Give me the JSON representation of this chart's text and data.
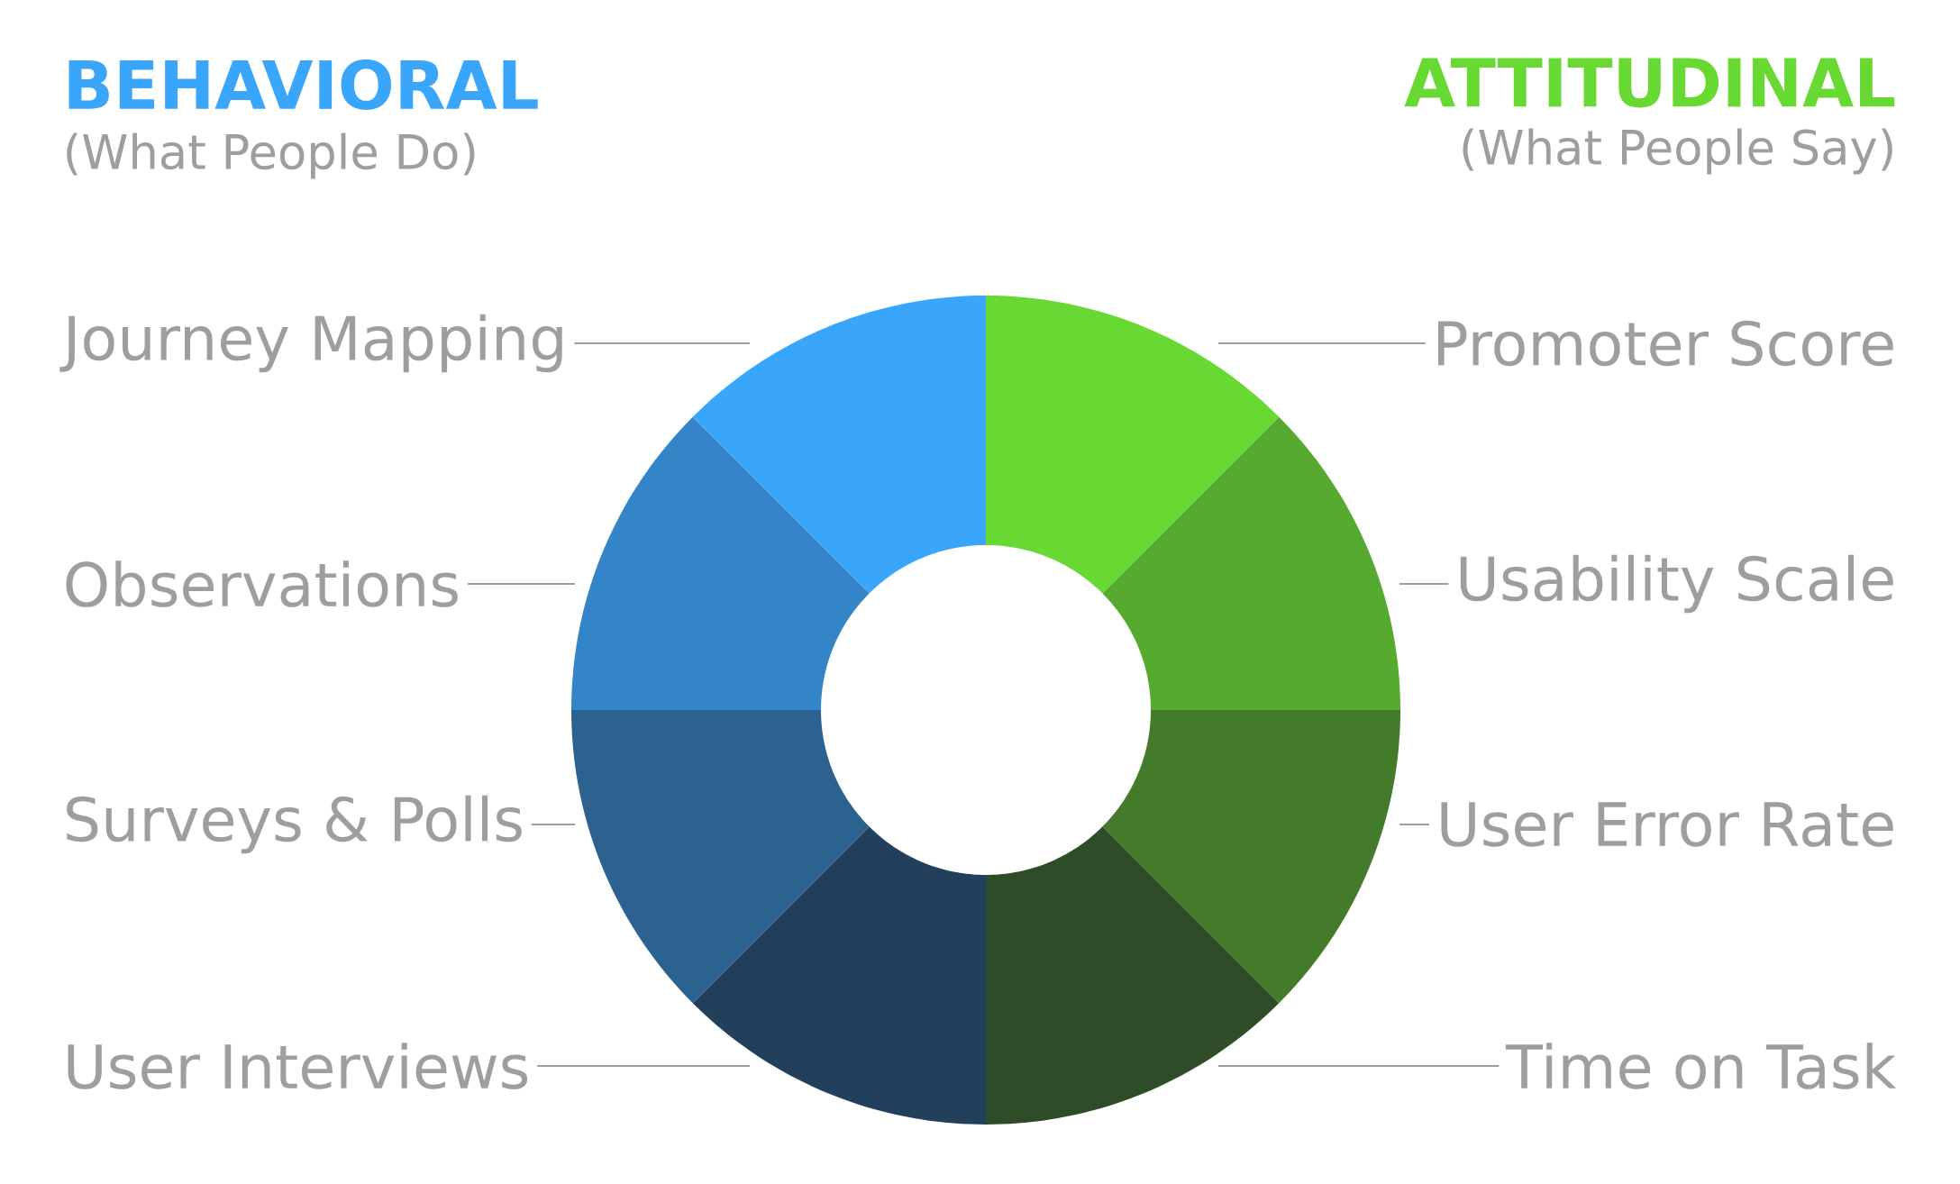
{
  "chart_data": {
    "type": "donut",
    "categories": [
      "Promoter Score",
      "Usability Scale",
      "User Error Rate",
      "Time on Task",
      "User Interviews",
      "Surveys & Polls",
      "Observations",
      "Journey Mapping"
    ],
    "values": [
      12.5,
      12.5,
      12.5,
      12.5,
      12.5,
      12.5,
      12.5,
      12.5
    ],
    "colors": [
      "#68d932",
      "#56aa2f",
      "#437b2b",
      "#2e4c27",
      "#223f5b",
      "#2c6290",
      "#3485c8",
      "#3aa6fb"
    ],
    "annotations": [
      "BEHAVIORAL",
      "(What People Do)",
      "ATTITUDINAL",
      "(What People Say)"
    ]
  }
}
